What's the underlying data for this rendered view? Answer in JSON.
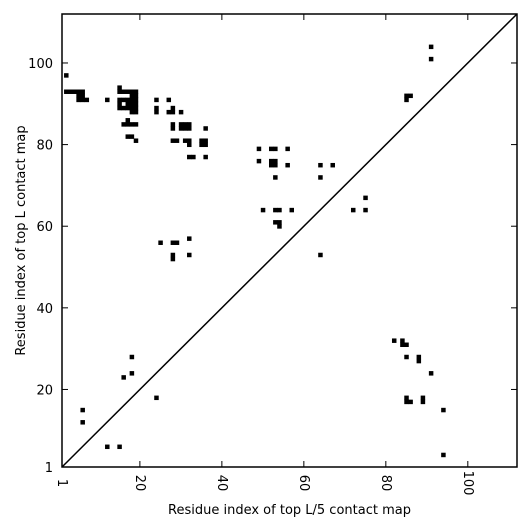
{
  "chart_data": {
    "type": "scatter",
    "title": "",
    "xlabel": "Residue index of top L/5 contact map",
    "ylabel": "Residue index of top L contact map",
    "xlim": [
      1,
      112
    ],
    "ylim": [
      1,
      112
    ],
    "xticks": [
      1,
      20,
      40,
      60,
      80,
      100
    ],
    "yticks": [
      1,
      20,
      40,
      60,
      80,
      100
    ],
    "diagonal": true,
    "grid": false,
    "marker_color": "#000000",
    "series": [
      {
        "values": [
          [
            2,
            97
          ],
          [
            2,
            93
          ],
          [
            3,
            93
          ],
          [
            4,
            93
          ],
          [
            5,
            93
          ],
          [
            6,
            93
          ],
          [
            5,
            92
          ],
          [
            6,
            92
          ],
          [
            5,
            91
          ],
          [
            6,
            91
          ],
          [
            7,
            91
          ],
          [
            12,
            91
          ],
          [
            15,
            94
          ],
          [
            15,
            93
          ],
          [
            16,
            93
          ],
          [
            17,
            93
          ],
          [
            18,
            93
          ],
          [
            19,
            93
          ],
          [
            18,
            92
          ],
          [
            19,
            92
          ],
          [
            15,
            91
          ],
          [
            16,
            91
          ],
          [
            17,
            91
          ],
          [
            18,
            91
          ],
          [
            19,
            91
          ],
          [
            15,
            90
          ],
          [
            17,
            90
          ],
          [
            18,
            90
          ],
          [
            19,
            90
          ],
          [
            15,
            89
          ],
          [
            16,
            89
          ],
          [
            17,
            89
          ],
          [
            18,
            89
          ],
          [
            19,
            89
          ],
          [
            18,
            88
          ],
          [
            19,
            88
          ],
          [
            17,
            86
          ],
          [
            16,
            85
          ],
          [
            17,
            85
          ],
          [
            18,
            85
          ],
          [
            19,
            85
          ],
          [
            17,
            82
          ],
          [
            18,
            82
          ],
          [
            19,
            81
          ],
          [
            24,
            91
          ],
          [
            27,
            91
          ],
          [
            24,
            89
          ],
          [
            24,
            88
          ],
          [
            28,
            89
          ],
          [
            27,
            88
          ],
          [
            28,
            88
          ],
          [
            30,
            88
          ],
          [
            28,
            85
          ],
          [
            30,
            85
          ],
          [
            31,
            85
          ],
          [
            32,
            85
          ],
          [
            28,
            84
          ],
          [
            30,
            84
          ],
          [
            31,
            84
          ],
          [
            32,
            84
          ],
          [
            28,
            81
          ],
          [
            29,
            81
          ],
          [
            31,
            81
          ],
          [
            32,
            81
          ],
          [
            35,
            81
          ],
          [
            36,
            81
          ],
          [
            32,
            80
          ],
          [
            35,
            80
          ],
          [
            36,
            80
          ],
          [
            36,
            84
          ],
          [
            32,
            77
          ],
          [
            33,
            77
          ],
          [
            36,
            77
          ],
          [
            25,
            56
          ],
          [
            28,
            56
          ],
          [
            29,
            56
          ],
          [
            32,
            57
          ],
          [
            28,
            53
          ],
          [
            32,
            53
          ],
          [
            28,
            52
          ],
          [
            49,
            79
          ],
          [
            52,
            79
          ],
          [
            53,
            79
          ],
          [
            56,
            79
          ],
          [
            49,
            76
          ],
          [
            52,
            76
          ],
          [
            53,
            76
          ],
          [
            52,
            75
          ],
          [
            53,
            75
          ],
          [
            56,
            75
          ],
          [
            53,
            72
          ],
          [
            50,
            64
          ],
          [
            53,
            64
          ],
          [
            54,
            64
          ],
          [
            57,
            64
          ],
          [
            53,
            61
          ],
          [
            54,
            61
          ],
          [
            54,
            60
          ],
          [
            64,
            75
          ],
          [
            67,
            75
          ],
          [
            64,
            72
          ],
          [
            64,
            53
          ],
          [
            75,
            67
          ],
          [
            72,
            64
          ],
          [
            75,
            64
          ],
          [
            85,
            92
          ],
          [
            86,
            92
          ],
          [
            85,
            91
          ],
          [
            91,
            104
          ],
          [
            91,
            101
          ],
          [
            82,
            32
          ],
          [
            84,
            32
          ],
          [
            84,
            31
          ],
          [
            85,
            31
          ],
          [
            85,
            28
          ],
          [
            88,
            28
          ],
          [
            88,
            27
          ],
          [
            91,
            24
          ],
          [
            85,
            18
          ],
          [
            85,
            17
          ],
          [
            86,
            17
          ],
          [
            89,
            18
          ],
          [
            89,
            17
          ],
          [
            94,
            15
          ],
          [
            94,
            4
          ],
          [
            18,
            28
          ],
          [
            18,
            24
          ],
          [
            16,
            23
          ],
          [
            24,
            18
          ],
          [
            6,
            15
          ],
          [
            6,
            12
          ],
          [
            12,
            6
          ],
          [
            15,
            6
          ]
        ]
      }
    ]
  }
}
